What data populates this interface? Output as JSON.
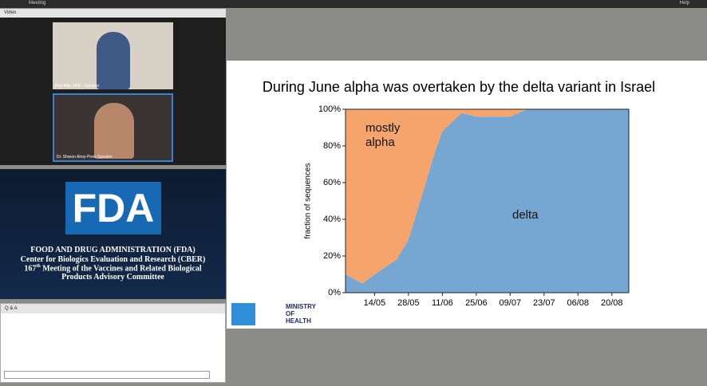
{
  "window": {
    "menu": "Meeting",
    "help": "Help"
  },
  "video": {
    "title": "Video",
    "speakers": [
      "Ron Milo, PhD - Speaker",
      "Dr. Sharon Alroy-Preis-Speaker"
    ]
  },
  "fda": {
    "logo": "FDA",
    "lines": [
      "FOOD AND DRUG ADMINISTRATION (FDA)",
      "Center for Biologics Evaluation and Research (CBER)"
    ],
    "meeting": {
      "number": "167",
      "ordinal": "th",
      "text": "Meeting of the Vaccines and Related Biological Products Advisory Committee"
    }
  },
  "qa": {
    "title": "Q & A"
  },
  "slide": {
    "logo": "MINISTRY OF HEALTH"
  },
  "chart_data": {
    "type": "area",
    "title": "During June alpha was overtaken by the delta variant in Israel",
    "y_label": "fraction of sequences",
    "x": [
      122,
      129,
      134,
      143,
      148,
      154,
      159,
      162,
      170,
      176,
      190,
      197,
      239
    ],
    "series": [
      {
        "name": "delta",
        "color": "#76a7d2",
        "values": [
          10,
          5,
          10,
          18,
          29,
          55,
          77,
          88,
          98,
          96,
          96,
          100,
          100
        ]
      },
      {
        "name": "mostly alpha",
        "color": "#f5a56b",
        "values": [
          90,
          95,
          90,
          82,
          71,
          45,
          23,
          12,
          2,
          4,
          4,
          0,
          0
        ]
      }
    ],
    "xlim": [
      122,
      239
    ],
    "ylim": [
      0,
      100
    ],
    "xticks": [
      {
        "value": 134,
        "label": "14/05"
      },
      {
        "value": 148,
        "label": "28/05"
      },
      {
        "value": 162,
        "label": "11/06"
      },
      {
        "value": 176,
        "label": "25/06"
      },
      {
        "value": 190,
        "label": "09/07"
      },
      {
        "value": 204,
        "label": "23/07"
      },
      {
        "value": 218,
        "label": "06/08"
      },
      {
        "value": 232,
        "label": "20/08"
      }
    ],
    "yticks": [
      {
        "value": 0,
        "label": "0%"
      },
      {
        "value": 20,
        "label": "20%"
      },
      {
        "value": 40,
        "label": "40%"
      },
      {
        "value": 60,
        "label": "60%"
      },
      {
        "value": 80,
        "label": "80%"
      },
      {
        "value": 100,
        "label": "100%"
      }
    ]
  }
}
